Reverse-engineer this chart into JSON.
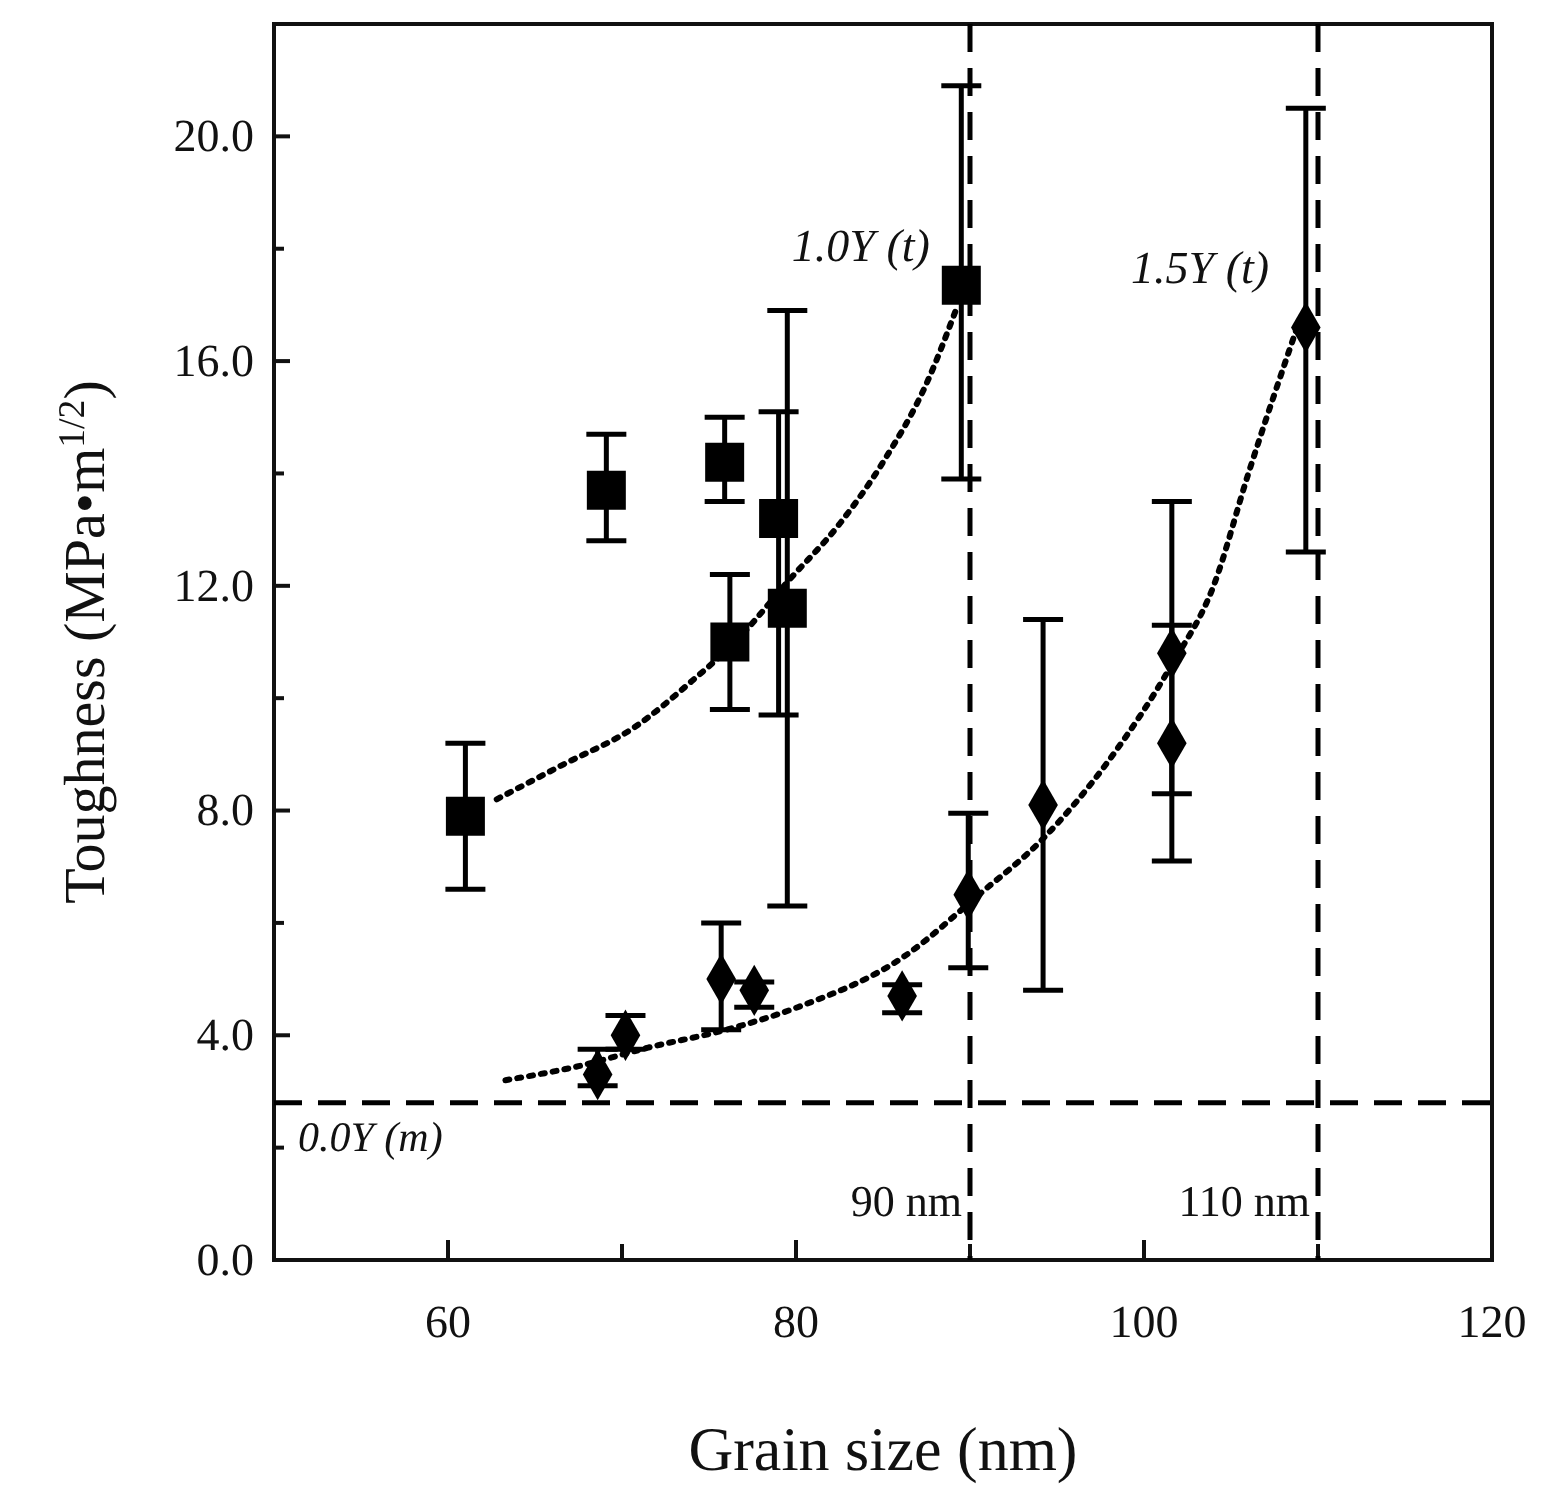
{
  "chart_data": {
    "type": "scatter",
    "xlabel": "Grain size (nm)",
    "ylabel": "Toughness (MPa•m$^{1/2}$)",
    "xlim": [
      50,
      120
    ],
    "xticks": [
      {
        "value": 50,
        "label": null
      },
      60,
      {
        "value": 70,
        "label": null
      },
      80,
      {
        "value": 90,
        "label": null
      },
      100,
      {
        "value": 110,
        "label": null
      },
      120
    ],
    "ylim": [
      0,
      22
    ],
    "yticks": [
      "0.0",
      {
        "value": 2,
        "label": null
      },
      {
        "value": 4,
        "label": "4.0"
      },
      {
        "value": 6,
        "label": null
      },
      {
        "value": 8,
        "label": "8.0"
      },
      {
        "value": 10,
        "label": null
      },
      {
        "value": 12,
        "label": "12.0"
      },
      {
        "value": 14,
        "label": null
      },
      {
        "value": 16,
        "label": "16.0"
      },
      {
        "value": 18,
        "label": null
      },
      {
        "value": 20,
        "label": "20.0"
      }
    ],
    "grid": false,
    "legend": false,
    "series": [
      {
        "marker": "square",
        "color": "#000000",
        "x": [
          61.0,
          69.1,
          75.9,
          76.2,
          79.0,
          79.5,
          89.5
        ],
        "values": [
          7.9,
          13.7,
          14.2,
          11.0,
          13.2,
          11.6,
          17.35
        ],
        "errors": [
          [
            6.6,
            9.2
          ],
          [
            12.8,
            14.7
          ],
          [
            13.5,
            15.0
          ],
          [
            9.8,
            12.2
          ],
          [
            9.7,
            15.1
          ],
          [
            6.3,
            16.9
          ],
          [
            13.9,
            20.9
          ]
        ]
      },
      {
        "marker": "diamond",
        "color": "#000000",
        "x": [
          68.6,
          70.2,
          75.7,
          77.6,
          86.1,
          89.9,
          94.2,
          101.6,
          101.6,
          109.3
        ],
        "values": [
          3.3,
          4.0,
          5.0,
          4.8,
          4.7,
          6.5,
          8.1,
          9.2,
          10.8,
          16.6
        ],
        "errors": [
          [
            3.1,
            3.75
          ],
          [
            3.75,
            4.35
          ],
          [
            4.1,
            6.0
          ],
          [
            4.5,
            4.95
          ],
          [
            4.4,
            4.9
          ],
          [
            5.2,
            7.95
          ],
          [
            4.8,
            11.4
          ],
          [
            8.3,
            11.3
          ],
          [
            7.1,
            13.5
          ],
          [
            12.6,
            20.5
          ]
        ]
      },
      {
        "type": "line",
        "name": "1.0Y (t)",
        "marker": "none",
        "line_style": "dotted",
        "color": "#000000",
        "x": [
          62.8,
          66.5,
          70.8,
          74.0,
          76.5,
          79.6,
          82.5,
          85.0,
          87.5,
          89.3
        ],
        "values": [
          8.2,
          8.8,
          9.5,
          10.3,
          11.0,
          12.1,
          13.1,
          14.2,
          15.6,
          17.0
        ]
      },
      {
        "type": "line",
        "name": "1.5Y (t)",
        "marker": "none",
        "line_style": "dotted",
        "color": "#000000",
        "x": [
          63.3,
          67.5,
          71.5,
          76.0,
          80.1,
          86.2,
          90.5,
          94.2,
          98.0,
          101.6,
          104.0,
          106.0,
          108.8
        ],
        "values": [
          3.2,
          3.45,
          3.78,
          4.1,
          4.5,
          5.4,
          6.5,
          7.5,
          8.9,
          10.6,
          12.0,
          14.0,
          16.6
        ]
      }
    ],
    "ref_lines": [
      {
        "axis": "y",
        "value": 2.8,
        "label": "0.0Y (m)",
        "line_style": "dashed",
        "color": "#000000"
      },
      {
        "axis": "x",
        "value": 90,
        "label": "90 nm",
        "line_style": "dashed",
        "color": "#000000"
      },
      {
        "axis": "x",
        "value": 110,
        "label": "110 nm",
        "line_style": "dashed",
        "color": "#000000"
      }
    ]
  }
}
